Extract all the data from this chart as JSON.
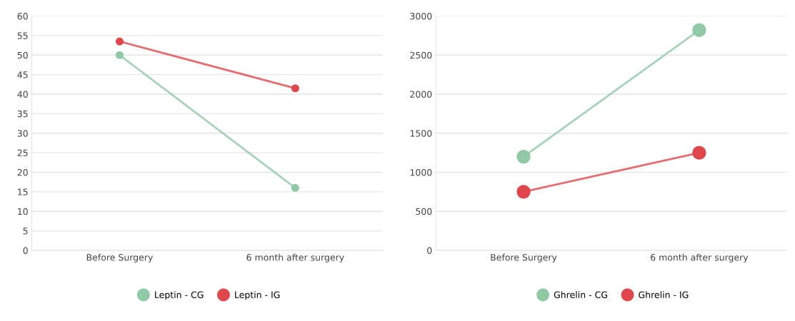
{
  "chart_data": [
    {
      "type": "line",
      "categories": [
        "Before Surgery",
        "6 month after surgery"
      ],
      "ylim": [
        0,
        60
      ],
      "yticks": [
        0,
        5,
        10,
        15,
        20,
        25,
        30,
        35,
        40,
        45,
        50,
        55,
        60
      ],
      "grid": "y",
      "legend": "bottom",
      "marker": "circle",
      "series": [
        {
          "name": "Leptin - CG",
          "color": "#8fc9a6",
          "values": [
            50,
            16
          ]
        },
        {
          "name": "Leptin - IG",
          "color": "#e0474c",
          "values": [
            53.5,
            41.5
          ]
        }
      ]
    },
    {
      "type": "line",
      "categories": [
        "Before Surgery",
        "6 month after surgery"
      ],
      "ylim": [
        0,
        3000
      ],
      "yticks": [
        0,
        500,
        1000,
        1500,
        2000,
        2500,
        3000
      ],
      "grid": "y",
      "legend": "bottom",
      "marker": "circle",
      "series": [
        {
          "name": "Ghrelin - CG",
          "color": "#8fc9a6",
          "values": [
            1200,
            2820
          ]
        },
        {
          "name": "Ghrelin - IG",
          "color": "#e0474c",
          "values": [
            750,
            1250
          ]
        }
      ]
    }
  ]
}
